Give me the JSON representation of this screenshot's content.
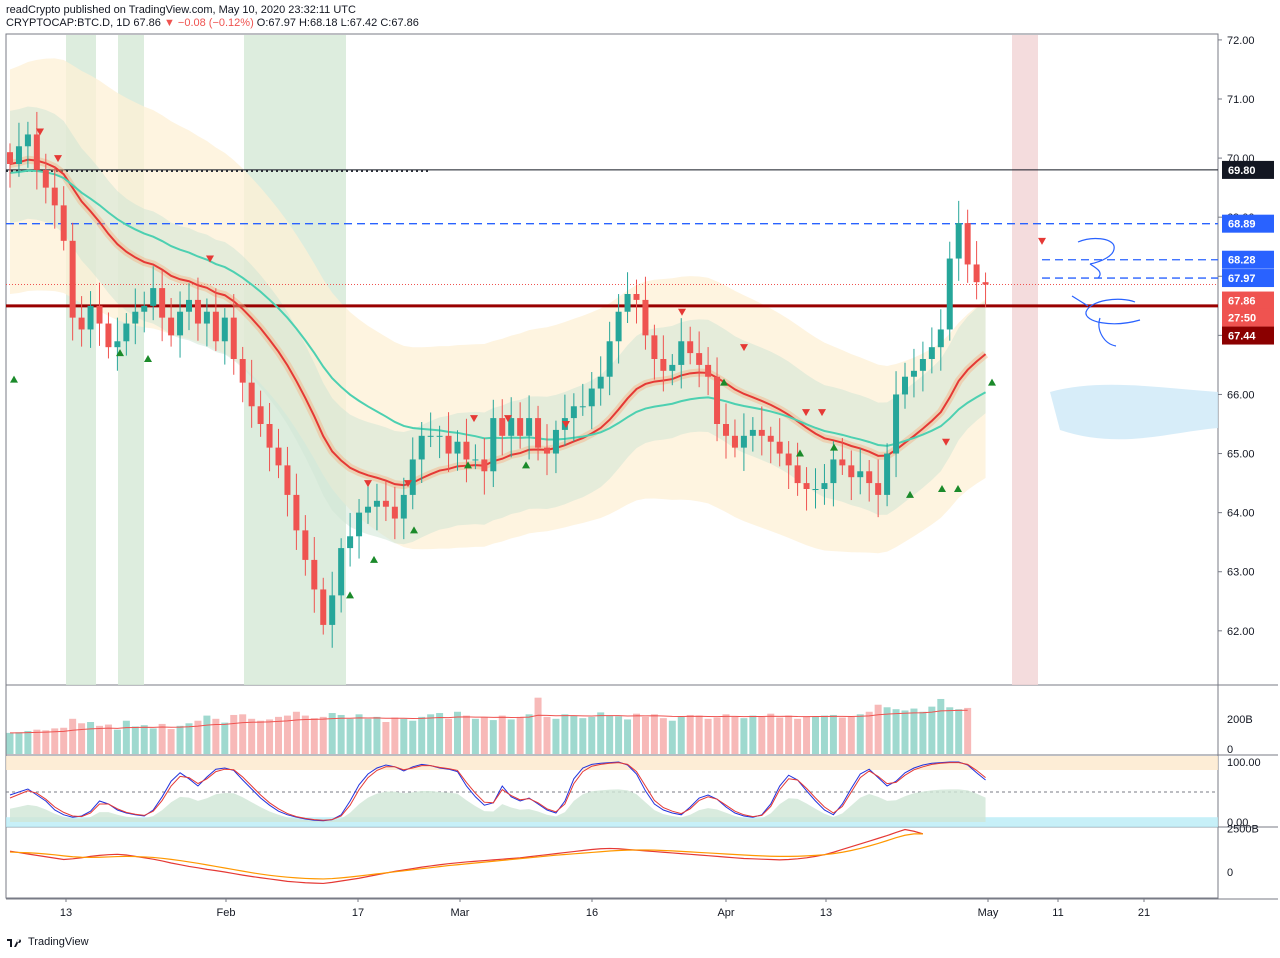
{
  "header": {
    "line1": "readCrypto published on TradingView.com, May 10, 2020 23:32:11 UTC",
    "symbol": "CRYPTOCAP:BTC.D, 1D",
    "last": "67.86",
    "change": "▼ −0.08 (−0.12%)",
    "ohlc": "O:67.97 H:68.18 L:67.42 C:67.86"
  },
  "footer": {
    "brand": "TradingView"
  },
  "colors": {
    "up": "#26a69a",
    "down": "#ef5350",
    "support": "#990000",
    "dashed": "#2962ff",
    "ema_fast": "#e53935",
    "ema_slow": "#4dd0b1"
  },
  "chart_data": [
    {
      "type": "candlestick",
      "title": "",
      "ylim": [
        61.1,
        72.1
      ],
      "y_ticks": [
        "62.00",
        "63.00",
        "64.00",
        "65.00",
        "66.00",
        "67.00",
        "68.00",
        "69.00",
        "70.00",
        "71.00",
        "72.00"
      ],
      "x_tick_labels": [
        "13",
        "Feb",
        "17",
        "Mar",
        "16",
        "Apr",
        "13",
        "May",
        "11",
        "21"
      ],
      "price_tags": [
        {
          "label": "69.80",
          "value": 69.8,
          "style": "black"
        },
        {
          "label": "68.89",
          "value": 68.89,
          "style": "blue"
        },
        {
          "label": "68.28",
          "value": 68.28,
          "style": "blue"
        },
        {
          "label": "67.97",
          "value": 67.97,
          "style": "blue"
        },
        {
          "label": "67.86",
          "value": 67.86,
          "style": "red"
        },
        {
          "label": "27:50",
          "value": 67.5,
          "style": "red"
        },
        {
          "label": "67.44",
          "value": 67.44,
          "style": "darkred"
        }
      ],
      "horizontal_lines": [
        {
          "value": 69.8,
          "style": "solid-black"
        },
        {
          "value": 68.89,
          "style": "dashed-blue"
        },
        {
          "value": 68.28,
          "style": "dashed-blue-short"
        },
        {
          "value": 67.97,
          "style": "dashed-blue-short"
        },
        {
          "value": 67.5,
          "style": "solid-darkred"
        }
      ],
      "close_series": [
        69.9,
        70.2,
        70.4,
        69.8,
        69.5,
        69.2,
        68.6,
        67.3,
        67.1,
        67.5,
        67.2,
        66.8,
        66.9,
        67.2,
        67.4,
        67.5,
        67.8,
        67.3,
        67.0,
        67.4,
        67.6,
        67.2,
        67.4,
        66.9,
        67.3,
        66.6,
        66.2,
        65.8,
        65.5,
        65.1,
        64.8,
        64.3,
        63.7,
        63.2,
        62.7,
        62.1,
        62.6,
        63.4,
        63.6,
        64.0,
        64.1,
        64.2,
        64.1,
        63.9,
        64.3,
        64.9,
        65.3,
        65.3,
        65.3,
        65.0,
        65.2,
        64.9,
        64.9,
        64.7,
        65.6,
        65.3,
        65.6,
        65.3,
        65.6,
        65.1,
        65.0,
        65.4,
        65.6,
        65.8,
        65.8,
        66.1,
        66.3,
        66.9,
        67.4,
        67.7,
        67.6,
        67.0,
        66.6,
        66.4,
        66.5,
        66.9,
        66.7,
        66.5,
        66.3,
        65.5,
        65.3,
        65.1,
        65.3,
        65.4,
        65.3,
        65.2,
        65.0,
        64.8,
        64.5,
        64.4,
        64.4,
        64.5,
        64.9,
        64.8,
        64.6,
        64.7,
        64.5,
        64.3,
        65.0,
        66.0,
        66.3,
        66.4,
        66.6,
        66.8,
        67.1,
        68.3,
        68.9,
        68.2,
        67.9,
        67.86
      ]
    },
    {
      "type": "bar",
      "title": "",
      "y_ticks": [
        "200B",
        "0"
      ],
      "values": [
        33,
        34,
        36,
        38,
        37,
        40,
        41,
        55,
        48,
        50,
        44,
        46,
        38,
        52,
        43,
        45,
        40,
        47,
        39,
        44,
        48,
        52,
        60,
        55,
        49,
        61,
        62,
        55,
        52,
        54,
        58,
        60,
        66,
        60,
        56,
        58,
        64,
        61,
        55,
        62,
        55,
        58,
        50,
        57,
        55,
        52,
        58,
        62,
        64,
        55,
        66,
        60,
        55,
        57,
        53,
        60,
        54,
        58,
        62,
        88,
        58,
        55,
        62,
        60,
        56,
        58,
        65,
        60,
        59,
        54,
        63,
        58,
        62,
        56,
        52,
        58,
        61,
        60,
        55,
        57,
        62,
        58,
        56,
        60,
        58,
        63,
        57,
        60,
        55,
        58,
        59,
        60,
        61,
        57,
        58,
        62,
        66,
        77,
        73,
        70,
        68,
        71,
        66,
        74,
        86,
        73,
        70,
        72
      ],
      "average_line": true
    },
    {
      "type": "line",
      "title": "",
      "ylim": [
        0,
        100
      ],
      "y_ticks": [
        "100.00",
        "0.00"
      ],
      "series": [
        {
          "values": [
            45,
            50,
            55,
            45,
            35,
            20,
            12,
            8,
            10,
            18,
            35,
            30,
            20,
            15,
            12,
            10,
            20,
            42,
            68,
            82,
            72,
            60,
            75,
            88,
            90,
            86,
            70,
            55,
            40,
            28,
            18,
            12,
            8,
            5,
            3,
            2,
            4,
            12,
            35,
            62,
            80,
            90,
            95,
            92,
            85,
            92,
            96,
            94,
            90,
            88,
            84,
            60,
            42,
            28,
            32,
            60,
            42,
            35,
            40,
            30,
            20,
            15,
            35,
            72,
            90,
            96,
            98,
            99,
            100,
            95,
            80,
            52,
            30,
            20,
            15,
            12,
            25,
            40,
            45,
            38,
            25,
            15,
            10,
            8,
            12,
            30,
            60,
            78,
            70,
            52,
            35,
            20,
            12,
            30,
            56,
            80,
            88,
            74,
            60,
            68,
            82,
            90,
            95,
            98,
            99,
            100,
            100,
            95,
            82,
            70
          ]
        },
        {
          "values": [
            40,
            46,
            52,
            48,
            38,
            25,
            16,
            10,
            9,
            15,
            30,
            30,
            22,
            16,
            13,
            11,
            18,
            36,
            60,
            76,
            74,
            64,
            72,
            84,
            88,
            87,
            75,
            60,
            45,
            32,
            22,
            14,
            9,
            6,
            4,
            3,
            4,
            10,
            28,
            54,
            74,
            86,
            92,
            92,
            87,
            90,
            94,
            94,
            91,
            89,
            86,
            66,
            48,
            33,
            32,
            54,
            44,
            37,
            39,
            32,
            22,
            17,
            30,
            64,
            84,
            93,
            96,
            98,
            99,
            96,
            84,
            60,
            36,
            24,
            18,
            14,
            22,
            36,
            42,
            38,
            28,
            18,
            12,
            9,
            11,
            26,
            54,
            72,
            70,
            56,
            40,
            25,
            15,
            26,
            50,
            74,
            85,
            76,
            64,
            66,
            78,
            87,
            92,
            96,
            98,
            99,
            99,
            96,
            86,
            74
          ]
        }
      ]
    },
    {
      "type": "line",
      "title": "",
      "y_ticks": [
        "2500B",
        "0"
      ],
      "series": [
        {
          "values": [
            1200,
            1120,
            1040,
            960,
            880,
            800,
            720,
            760,
            820,
            900,
            960,
            1000,
            1020,
            980,
            900,
            820,
            740,
            640,
            520,
            420,
            320,
            240,
            150,
            80,
            0,
            -90,
            -180,
            -260,
            -330,
            -400,
            -470,
            -540,
            -580,
            -620,
            -640,
            -660,
            -600,
            -520,
            -440,
            -360,
            -260,
            -160,
            -60,
            40,
            120,
            200,
            280,
            350,
            420,
            480,
            530,
            580,
            620,
            660,
            700,
            740,
            780,
            820,
            880,
            940,
            1000,
            1060,
            1120,
            1180,
            1240,
            1300,
            1340,
            1360,
            1340,
            1300,
            1260,
            1220,
            1180,
            1140,
            1100,
            1060,
            1020,
            980,
            940,
            900,
            860,
            820,
            780,
            760,
            740,
            720,
            700,
            720,
            760,
            820,
            900,
            1000,
            1140,
            1300,
            1460,
            1620,
            1780,
            1940,
            2100,
            2280,
            2450,
            2350,
            2200
          ]
        },
        {
          "values": [
            1150,
            1130,
            1110,
            1080,
            1040,
            990,
            930,
            880,
            850,
            840,
            850,
            870,
            890,
            900,
            890,
            870,
            840,
            790,
            730,
            660,
            580,
            500,
            410,
            320,
            230,
            140,
            50,
            -40,
            -120,
            -190,
            -250,
            -300,
            -340,
            -370,
            -390,
            -400,
            -380,
            -340,
            -290,
            -230,
            -170,
            -110,
            -50,
            10,
            70,
            130,
            190,
            250,
            310,
            370,
            420,
            470,
            520,
            570,
            620,
            670,
            720,
            770,
            820,
            870,
            920,
            970,
            1010,
            1050,
            1090,
            1130,
            1170,
            1210,
            1240,
            1260,
            1270,
            1270,
            1260,
            1240,
            1220,
            1190,
            1160,
            1130,
            1100,
            1070,
            1040,
            1010,
            980,
            950,
            930,
            910,
            900,
            900,
            910,
            930,
            960,
            1000,
            1060,
            1140,
            1240,
            1360,
            1500,
            1650,
            1810,
            1980,
            2120,
            2200,
            2200
          ]
        }
      ]
    }
  ]
}
